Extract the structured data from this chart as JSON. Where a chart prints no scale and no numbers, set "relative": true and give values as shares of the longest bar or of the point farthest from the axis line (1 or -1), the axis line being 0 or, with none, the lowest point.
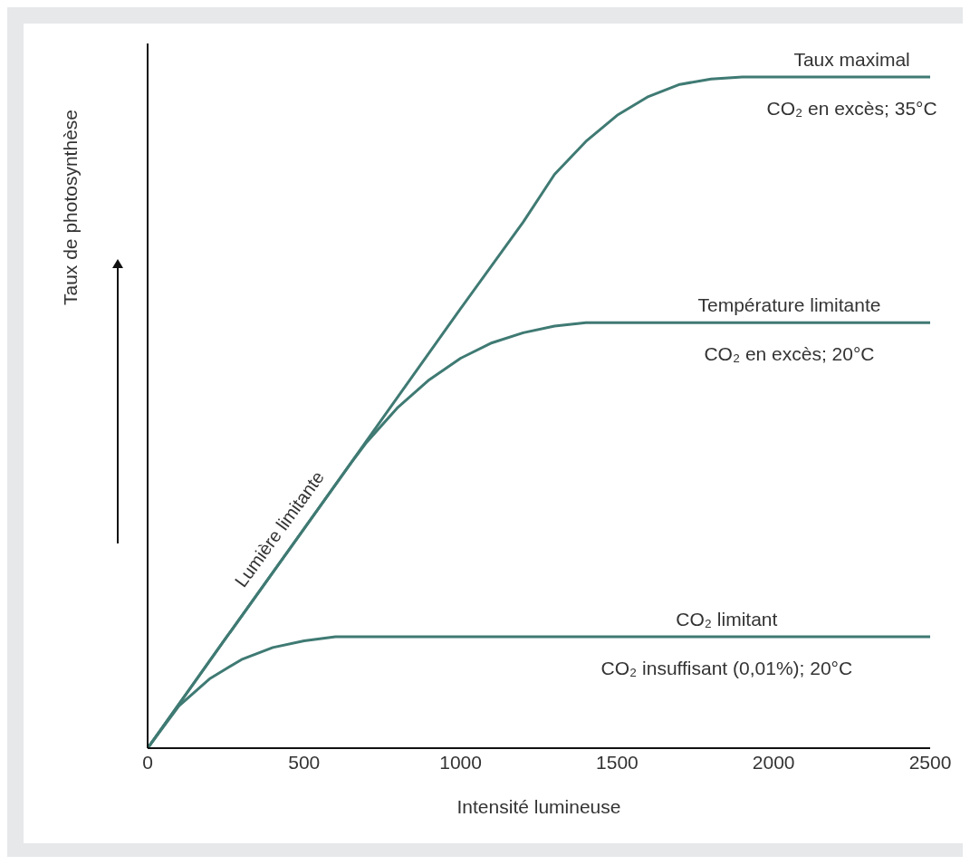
{
  "chart_data": {
    "type": "line",
    "relative": true,
    "xlabel": "Intensité lumineuse",
    "ylabel": "Taux de photosynthèse",
    "xlim": [
      0,
      2500
    ],
    "xticks": [
      0,
      500,
      1000,
      1500,
      2000,
      2500
    ],
    "marker": "none",
    "line_style": "solid",
    "series": [
      {
        "color": "#3f7a73",
        "x": [
          0,
          250,
          500,
          750,
          1000,
          1200,
          1300,
          1400,
          1500,
          1600,
          1700,
          1800,
          1900,
          2500
        ],
        "values": [
          0,
          0.164,
          0.327,
          0.491,
          0.655,
          0.784,
          0.855,
          0.904,
          0.943,
          0.971,
          0.989,
          0.997,
          1,
          1
        ]
      },
      {
        "color": "#3f7a73",
        "x": [
          0,
          250,
          500,
          650,
          700,
          800,
          900,
          1000,
          1100,
          1200,
          1300,
          1400,
          2500
        ],
        "values": [
          0,
          0.164,
          0.327,
          0.425,
          0.456,
          0.508,
          0.549,
          0.581,
          0.604,
          0.619,
          0.629,
          0.634,
          0.634
        ]
      },
      {
        "color": "#3f7a73",
        "x": [
          0,
          100,
          200,
          300,
          400,
          500,
          600,
          2500
        ],
        "values": [
          0,
          0.063,
          0.104,
          0.132,
          0.15,
          0.16,
          0.166,
          0.166
        ]
      }
    ],
    "annotations": [
      {
        "text": "Taux maximal",
        "x": 2250,
        "y": 1
      },
      {
        "text": "CO₂ en excès; 35°C",
        "x": 2250,
        "y": 1
      },
      {
        "text": "Température limitante",
        "x": 2050,
        "y": 0.634
      },
      {
        "text": "CO₂ en excès; 20°C",
        "x": 2050,
        "y": 0.634
      },
      {
        "text": "CO₂ limitant",
        "x": 1850,
        "y": 0.166
      },
      {
        "text": "CO₂ insuffisant (0,01%); 20°C",
        "x": 1850,
        "y": 0.166
      },
      {
        "text": "Lumière limitante",
        "x": 470,
        "y": 0.31
      }
    ]
  }
}
